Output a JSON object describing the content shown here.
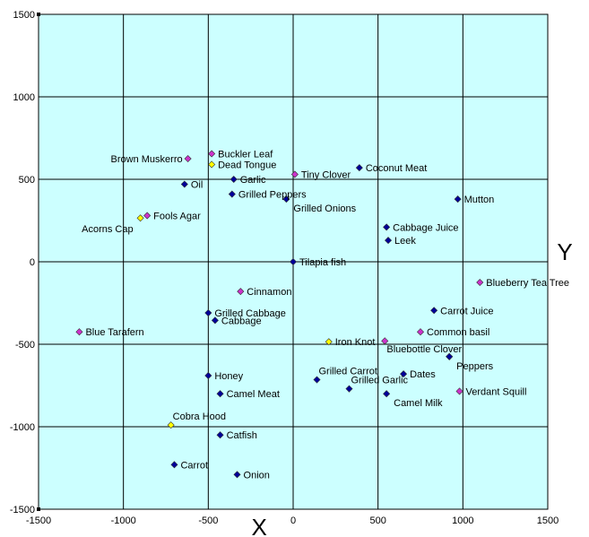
{
  "chart_data": {
    "type": "scatter",
    "title": "",
    "xlabel": "X",
    "ylabel": "Y",
    "xlim": [
      -1500,
      1500
    ],
    "ylim": [
      -1500,
      1500
    ],
    "xticks": [
      "-1500",
      "-1000",
      "-500",
      "0",
      "500",
      "1000",
      "1500"
    ],
    "yticks": [
      "1500",
      "1000",
      "500",
      "0",
      "-500",
      "-1000",
      "-1500"
    ],
    "grid": true,
    "colors": {
      "plot_bg": "#ccffff",
      "grid": "#000000",
      "food": "#000099",
      "plant": "#cc33cc",
      "reagent": "#ffff00"
    },
    "points": [
      {
        "label": "Brown Muskerro",
        "x": -620,
        "y": 625,
        "cat": "plant",
        "anchor": "end"
      },
      {
        "label": "Buckler Leaf",
        "x": -480,
        "y": 655,
        "cat": "plant",
        "anchor": "start"
      },
      {
        "label": "Dead Tongue",
        "x": -480,
        "y": 590,
        "cat": "reagent",
        "anchor": "start"
      },
      {
        "label": "Garlic",
        "x": -350,
        "y": 500,
        "cat": "food",
        "anchor": "start"
      },
      {
        "label": "Oil",
        "x": -640,
        "y": 470,
        "cat": "food",
        "anchor": "start"
      },
      {
        "label": "Grilled Peppers",
        "x": -360,
        "y": 410,
        "cat": "food",
        "anchor": "start"
      },
      {
        "label": "Fools Agar",
        "x": -860,
        "y": 280,
        "cat": "plant",
        "anchor": "start"
      },
      {
        "label": "Acorns Cap",
        "x": -900,
        "y": 265,
        "cat": "reagent",
        "anchor": "end-below"
      },
      {
        "label": "Tiny Clover",
        "x": 10,
        "y": 530,
        "cat": "plant",
        "anchor": "start"
      },
      {
        "label": "Coconut Meat",
        "x": 390,
        "y": 570,
        "cat": "food",
        "anchor": "start"
      },
      {
        "label": "Grilled Onions",
        "x": -40,
        "y": 380,
        "cat": "food",
        "anchor": "start-below"
      },
      {
        "label": "Mutton",
        "x": 970,
        "y": 380,
        "cat": "food",
        "anchor": "start"
      },
      {
        "label": "Cabbage Juice",
        "x": 550,
        "y": 210,
        "cat": "food",
        "anchor": "start"
      },
      {
        "label": "Leek",
        "x": 560,
        "y": 130,
        "cat": "food",
        "anchor": "start"
      },
      {
        "label": "Tilapia fish",
        "x": 0,
        "y": 0,
        "cat": "food",
        "anchor": "start"
      },
      {
        "label": "Blueberry Tea Tree",
        "x": 1100,
        "y": -125,
        "cat": "plant",
        "anchor": "start"
      },
      {
        "label": "Cinnamon",
        "x": -310,
        "y": -180,
        "cat": "plant",
        "anchor": "start"
      },
      {
        "label": "Carrot Juice",
        "x": 830,
        "y": -295,
        "cat": "food",
        "anchor": "start"
      },
      {
        "label": "Grilled Cabbage",
        "x": -500,
        "y": -310,
        "cat": "food",
        "anchor": "start"
      },
      {
        "label": "Cabbage",
        "x": -460,
        "y": -355,
        "cat": "food",
        "anchor": "start"
      },
      {
        "label": "Blue Tarafern",
        "x": -1260,
        "y": -425,
        "cat": "plant",
        "anchor": "start"
      },
      {
        "label": "Common basil",
        "x": 750,
        "y": -425,
        "cat": "plant",
        "anchor": "start"
      },
      {
        "label": "Iron Knot",
        "x": 210,
        "y": -485,
        "cat": "reagent",
        "anchor": "start"
      },
      {
        "label": "",
        "x": 540,
        "y": -480,
        "cat": "plant",
        "anchor": "start"
      },
      {
        "label": "Bluebottle Clover",
        "x": 920,
        "y": -575,
        "cat": "food",
        "anchor": "end-above"
      },
      {
        "label": "Peppers",
        "x": 920,
        "y": -575,
        "cat": "food",
        "anchor": "start-below"
      },
      {
        "label": "Dates",
        "x": 650,
        "y": -680,
        "cat": "food",
        "anchor": "start"
      },
      {
        "label": "Grilled Carrot",
        "x": 140,
        "y": -715,
        "cat": "food",
        "anchor": "start-above"
      },
      {
        "label": "Grilled Garlic",
        "x": 330,
        "y": -770,
        "cat": "food",
        "anchor": "start-above"
      },
      {
        "label": "Camel Milk",
        "x": 550,
        "y": -800,
        "cat": "food",
        "anchor": "start-below"
      },
      {
        "label": "Verdant Squill",
        "x": 980,
        "y": -785,
        "cat": "plant",
        "anchor": "start"
      },
      {
        "label": "Honey",
        "x": -500,
        "y": -690,
        "cat": "food",
        "anchor": "start"
      },
      {
        "label": "Camel Meat",
        "x": -430,
        "y": -800,
        "cat": "food",
        "anchor": "start"
      },
      {
        "label": "Cobra Hood",
        "x": -720,
        "y": -990,
        "cat": "reagent",
        "anchor": "start-above"
      },
      {
        "label": "Catfish",
        "x": -430,
        "y": -1050,
        "cat": "food",
        "anchor": "start"
      },
      {
        "label": "Carrot",
        "x": -700,
        "y": -1230,
        "cat": "food",
        "anchor": "start"
      },
      {
        "label": "Onion",
        "x": -330,
        "y": -1290,
        "cat": "food",
        "anchor": "start"
      }
    ]
  }
}
